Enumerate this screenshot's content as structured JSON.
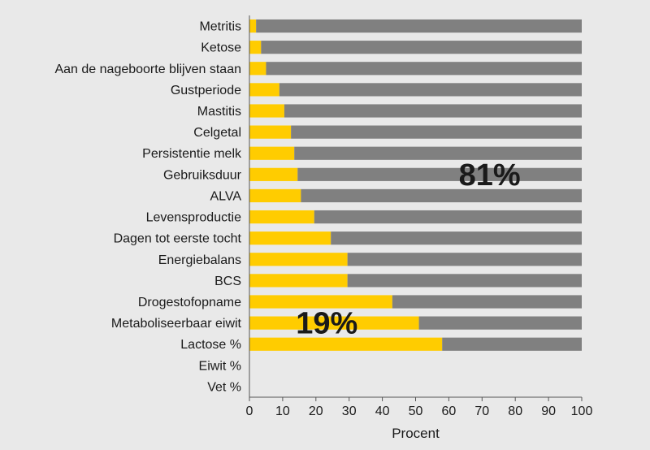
{
  "chart_data": {
    "type": "bar",
    "orientation": "horizontal",
    "stacked": true,
    "categories": [
      "Metritis",
      "Ketose",
      "Aan de nageboorte blijven staan",
      "Gustperiode",
      "Mastitis",
      "Celgetal",
      "Persistentie melk",
      "Gebruiksduur",
      "ALVA",
      "Levensproductie",
      "Dagen tot eerste tocht",
      "Energiebalans",
      "BCS",
      "Drogestofopname",
      "Metaboliseerbaar eiwit",
      "Lactose %",
      "Eiwit %",
      "Vet %"
    ],
    "series": [
      {
        "values": [
          2,
          3.5,
          5,
          9,
          10.5,
          12.5,
          13.5,
          14.5,
          15.5,
          19.5,
          24.5,
          29.5,
          29.5,
          43,
          51,
          58,
          0,
          0
        ],
        "color": "#ffcc00"
      },
      {
        "values": [
          98,
          96.5,
          95,
          91,
          89.5,
          87.5,
          86.5,
          85.5,
          84.5,
          80.5,
          75.5,
          70.5,
          70.5,
          57,
          49,
          42,
          0,
          0
        ],
        "color": "#808080"
      }
    ],
    "xlabel": "Procent",
    "ylabel": "",
    "xlim": [
      0,
      100
    ],
    "xticks": [
      0,
      10,
      20,
      30,
      40,
      50,
      60,
      70,
      80,
      90,
      100
    ],
    "grid": false,
    "annotations": [
      {
        "text": "81%",
        "x": 63,
        "category": "Gebruiksduur"
      },
      {
        "text": "19%",
        "x": 14,
        "category": "Metaboliseerbaar eiwit"
      }
    ]
  }
}
